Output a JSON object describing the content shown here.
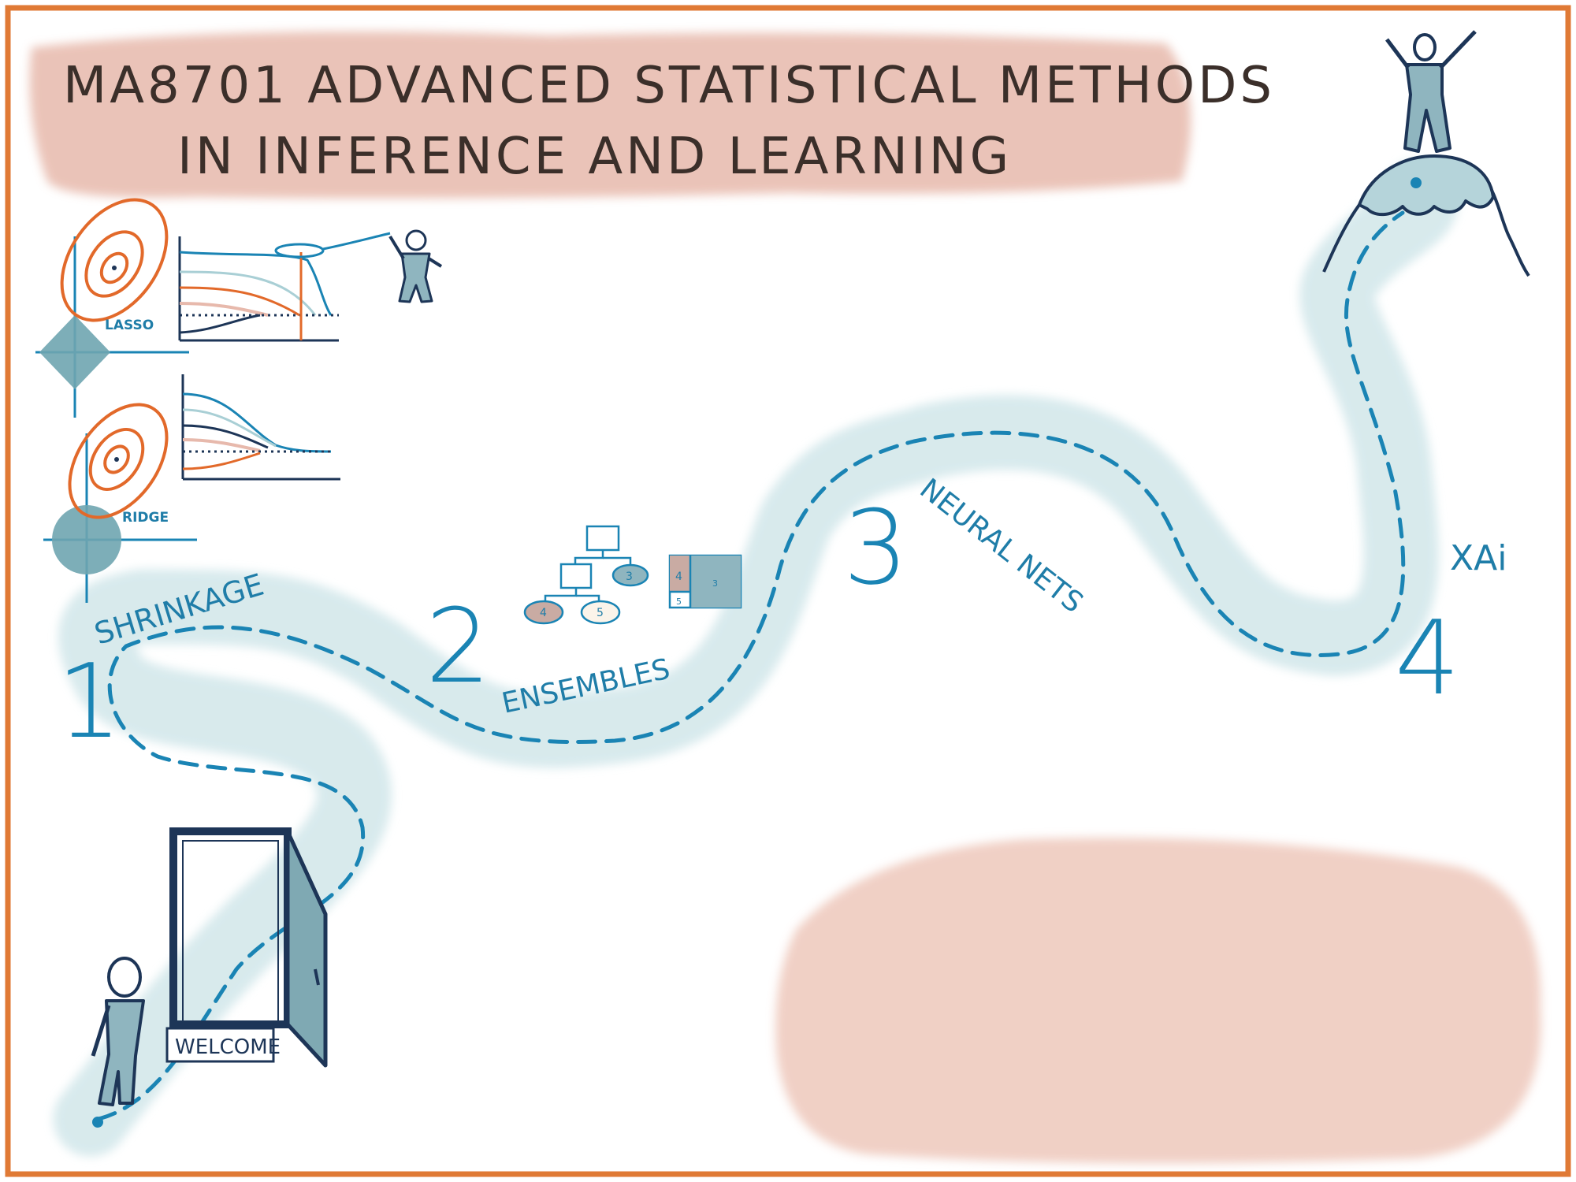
{
  "title": {
    "line1": "MA8701 ADVANCED STATISTICAL METHODS",
    "line2": "IN INFERENCE AND LEARNING"
  },
  "diagrams": {
    "lasso_label": "LASSO",
    "ridge_label": "RIDGE"
  },
  "tree": {
    "node_a": "3",
    "node_b": "4",
    "node_c": "5",
    "box_a": "4",
    "box_b": "3",
    "box_c": "5"
  },
  "steps": [
    {
      "number": "1",
      "label": "SHRINKAGE"
    },
    {
      "number": "2",
      "label": "ENSEMBLES"
    },
    {
      "number": "3",
      "label": "NEURAL NETS"
    },
    {
      "number": "4",
      "label": "XAi"
    }
  ],
  "door": {
    "sign": "WELCOME"
  },
  "colors": {
    "frame": "#e07a35",
    "title_blob": "#e7b9ac",
    "path_wash": "#d6e9ec",
    "ink_blue": "#1a84b4",
    "figure_fill": "#8fb5bf",
    "dark_ink": "#1d3557",
    "orange": "#e2692a"
  }
}
